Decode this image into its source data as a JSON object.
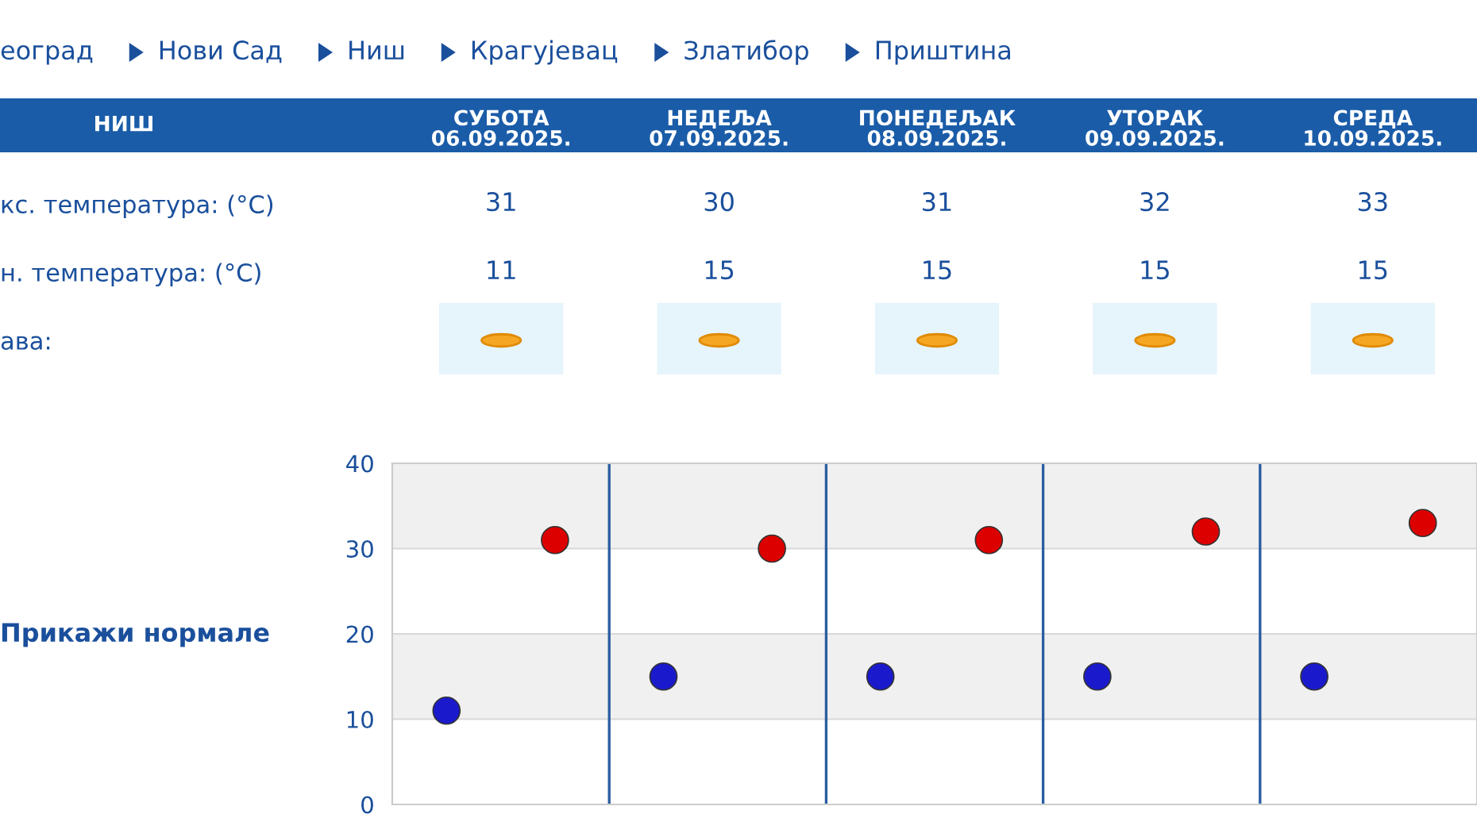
{
  "chart_data": [
    {
      "type": "heatmap",
      "title": "НИШ",
      "categories": [
        "СУБОТА\n06.09.2025.",
        "НЕДЕЉА\n07.09.2025.",
        "ПОНЕДЕЉАК\n08.09.2025.",
        "УТОРАК\n09.09.2025.",
        "СРЕДА\n10.09.2025."
      ],
      "y_categories": [
        "кс. температура: (°C)",
        "н. температура: (°C)",
        "ава:"
      ],
      "cells": [
        [
          31,
          30,
          31,
          32,
          33
        ],
        [
          11,
          15,
          15,
          15,
          15
        ],
        [
          null,
          null,
          null,
          null,
          null
        ]
      ],
      "data_labels": true,
      "annotations": [
        "еоград",
        "Нови Сад",
        "Ниш",
        "Крагујевац",
        "Златибор",
        "Приштина"
      ]
    },
    {
      "type": "scatter",
      "categories": [
        null,
        null,
        null,
        null,
        null,
        null,
        null,
        null,
        null,
        null
      ],
      "series": [
        {
          "color": "#1a1acc",
          "values": [
            11,
            null,
            15,
            null,
            15,
            null,
            15,
            null,
            15,
            null
          ]
        },
        {
          "color": "#dd0000",
          "values": [
            null,
            31,
            null,
            30,
            null,
            31,
            null,
            32,
            null,
            33
          ]
        }
      ],
      "ylim": [
        0,
        40
      ],
      "yticks": [
        0,
        10,
        20,
        30,
        40
      ],
      "grid": "y",
      "marker": "circle",
      "bands": [
        {
          "axis": "y",
          "from": 10,
          "to": 20,
          "color": "#f0f0f0"
        },
        {
          "axis": "y",
          "from": 30,
          "to": 40,
          "color": "#f0f0f0"
        }
      ],
      "annotations": [
        "Прикажи нормале"
      ]
    }
  ]
}
